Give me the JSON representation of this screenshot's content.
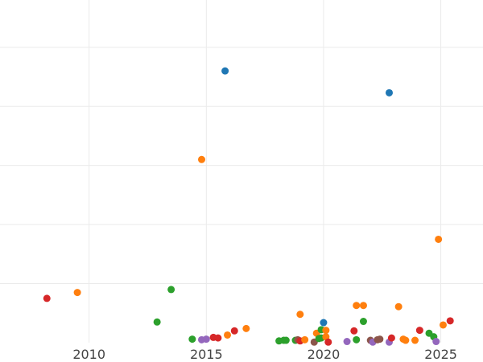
{
  "chart_data": {
    "type": "scatter",
    "title": "",
    "xlabel": "",
    "ylabel": "",
    "xlim": [
      2006.2,
      2026.8
    ],
    "ylim": [
      0,
      290
    ],
    "x_ticks": [
      2010,
      2015,
      2020,
      2025
    ],
    "x_tick_labels": [
      "2010",
      "2015",
      "2020",
      "2025"
    ],
    "y_gridlines": [
      50,
      100,
      150,
      200,
      250
    ],
    "grid": true,
    "legend": "none",
    "colors": {
      "blue": "#1f77b4",
      "orange": "#ff7f0e",
      "green": "#2ca02c",
      "red": "#d62728",
      "purple": "#9467bd",
      "brown": "#8c564b"
    },
    "points": [
      {
        "x": 2008.2,
        "y": 37.5,
        "c": "red"
      },
      {
        "x": 2009.5,
        "y": 42.5,
        "c": "orange"
      },
      {
        "x": 2012.9,
        "y": 17.5,
        "c": "green"
      },
      {
        "x": 2013.5,
        "y": 45.0,
        "c": "green"
      },
      {
        "x": 2014.4,
        "y": 3.0,
        "c": "green"
      },
      {
        "x": 2014.8,
        "y": 2.5,
        "c": "purple"
      },
      {
        "x": 2014.8,
        "y": 155.0,
        "c": "orange"
      },
      {
        "x": 2015.0,
        "y": 3.0,
        "c": "purple"
      },
      {
        "x": 2015.3,
        "y": 4.5,
        "c": "red"
      },
      {
        "x": 2015.5,
        "y": 4.0,
        "c": "red"
      },
      {
        "x": 2015.8,
        "y": 230.0,
        "c": "blue"
      },
      {
        "x": 2015.9,
        "y": 6.5,
        "c": "orange"
      },
      {
        "x": 2016.2,
        "y": 10.0,
        "c": "red"
      },
      {
        "x": 2016.7,
        "y": 12.0,
        "c": "orange"
      },
      {
        "x": 2018.1,
        "y": 1.5,
        "c": "green"
      },
      {
        "x": 2018.3,
        "y": 2.0,
        "c": "green"
      },
      {
        "x": 2018.4,
        "y": 2.0,
        "c": "green"
      },
      {
        "x": 2018.8,
        "y": 2.0,
        "c": "green"
      },
      {
        "x": 2018.9,
        "y": 2.5,
        "c": "brown"
      },
      {
        "x": 2019.0,
        "y": 1.5,
        "c": "red"
      },
      {
        "x": 2019.0,
        "y": 24.0,
        "c": "orange"
      },
      {
        "x": 2019.2,
        "y": 2.5,
        "c": "orange"
      },
      {
        "x": 2019.6,
        "y": 0.5,
        "c": "brown"
      },
      {
        "x": 2019.7,
        "y": 8.0,
        "c": "orange"
      },
      {
        "x": 2019.8,
        "y": 3.5,
        "c": "green"
      },
      {
        "x": 2019.9,
        "y": 11.0,
        "c": "green"
      },
      {
        "x": 2019.9,
        "y": 4.0,
        "c": "green"
      },
      {
        "x": 2020.0,
        "y": 17.0,
        "c": "blue"
      },
      {
        "x": 2020.1,
        "y": 10.5,
        "c": "orange"
      },
      {
        "x": 2020.1,
        "y": 5.0,
        "c": "orange"
      },
      {
        "x": 2020.2,
        "y": 0.5,
        "c": "red"
      },
      {
        "x": 2021.0,
        "y": 1.0,
        "c": "purple"
      },
      {
        "x": 2021.3,
        "y": 10.0,
        "c": "red"
      },
      {
        "x": 2021.4,
        "y": 2.5,
        "c": "green"
      },
      {
        "x": 2021.4,
        "y": 31.5,
        "c": "orange"
      },
      {
        "x": 2021.7,
        "y": 31.5,
        "c": "orange"
      },
      {
        "x": 2021.7,
        "y": 18.0,
        "c": "green"
      },
      {
        "x": 2022.0,
        "y": 2.0,
        "c": "brown"
      },
      {
        "x": 2022.1,
        "y": 0.5,
        "c": "purple"
      },
      {
        "x": 2022.3,
        "y": 2.5,
        "c": "brown"
      },
      {
        "x": 2022.4,
        "y": 3.0,
        "c": "brown"
      },
      {
        "x": 2022.8,
        "y": 0.5,
        "c": "purple"
      },
      {
        "x": 2022.8,
        "y": 211.5,
        "c": "blue"
      },
      {
        "x": 2022.9,
        "y": 4.0,
        "c": "red"
      },
      {
        "x": 2023.2,
        "y": 30.5,
        "c": "orange"
      },
      {
        "x": 2023.4,
        "y": 3.0,
        "c": "orange"
      },
      {
        "x": 2023.5,
        "y": 2.0,
        "c": "orange"
      },
      {
        "x": 2023.9,
        "y": 2.0,
        "c": "orange"
      },
      {
        "x": 2024.1,
        "y": 10.5,
        "c": "red"
      },
      {
        "x": 2024.5,
        "y": 8.0,
        "c": "green"
      },
      {
        "x": 2024.7,
        "y": 5.0,
        "c": "green"
      },
      {
        "x": 2024.8,
        "y": 1.0,
        "c": "purple"
      },
      {
        "x": 2024.9,
        "y": 87.5,
        "c": "orange"
      },
      {
        "x": 2025.1,
        "y": 15.0,
        "c": "orange"
      },
      {
        "x": 2025.4,
        "y": 18.5,
        "c": "red"
      }
    ]
  }
}
